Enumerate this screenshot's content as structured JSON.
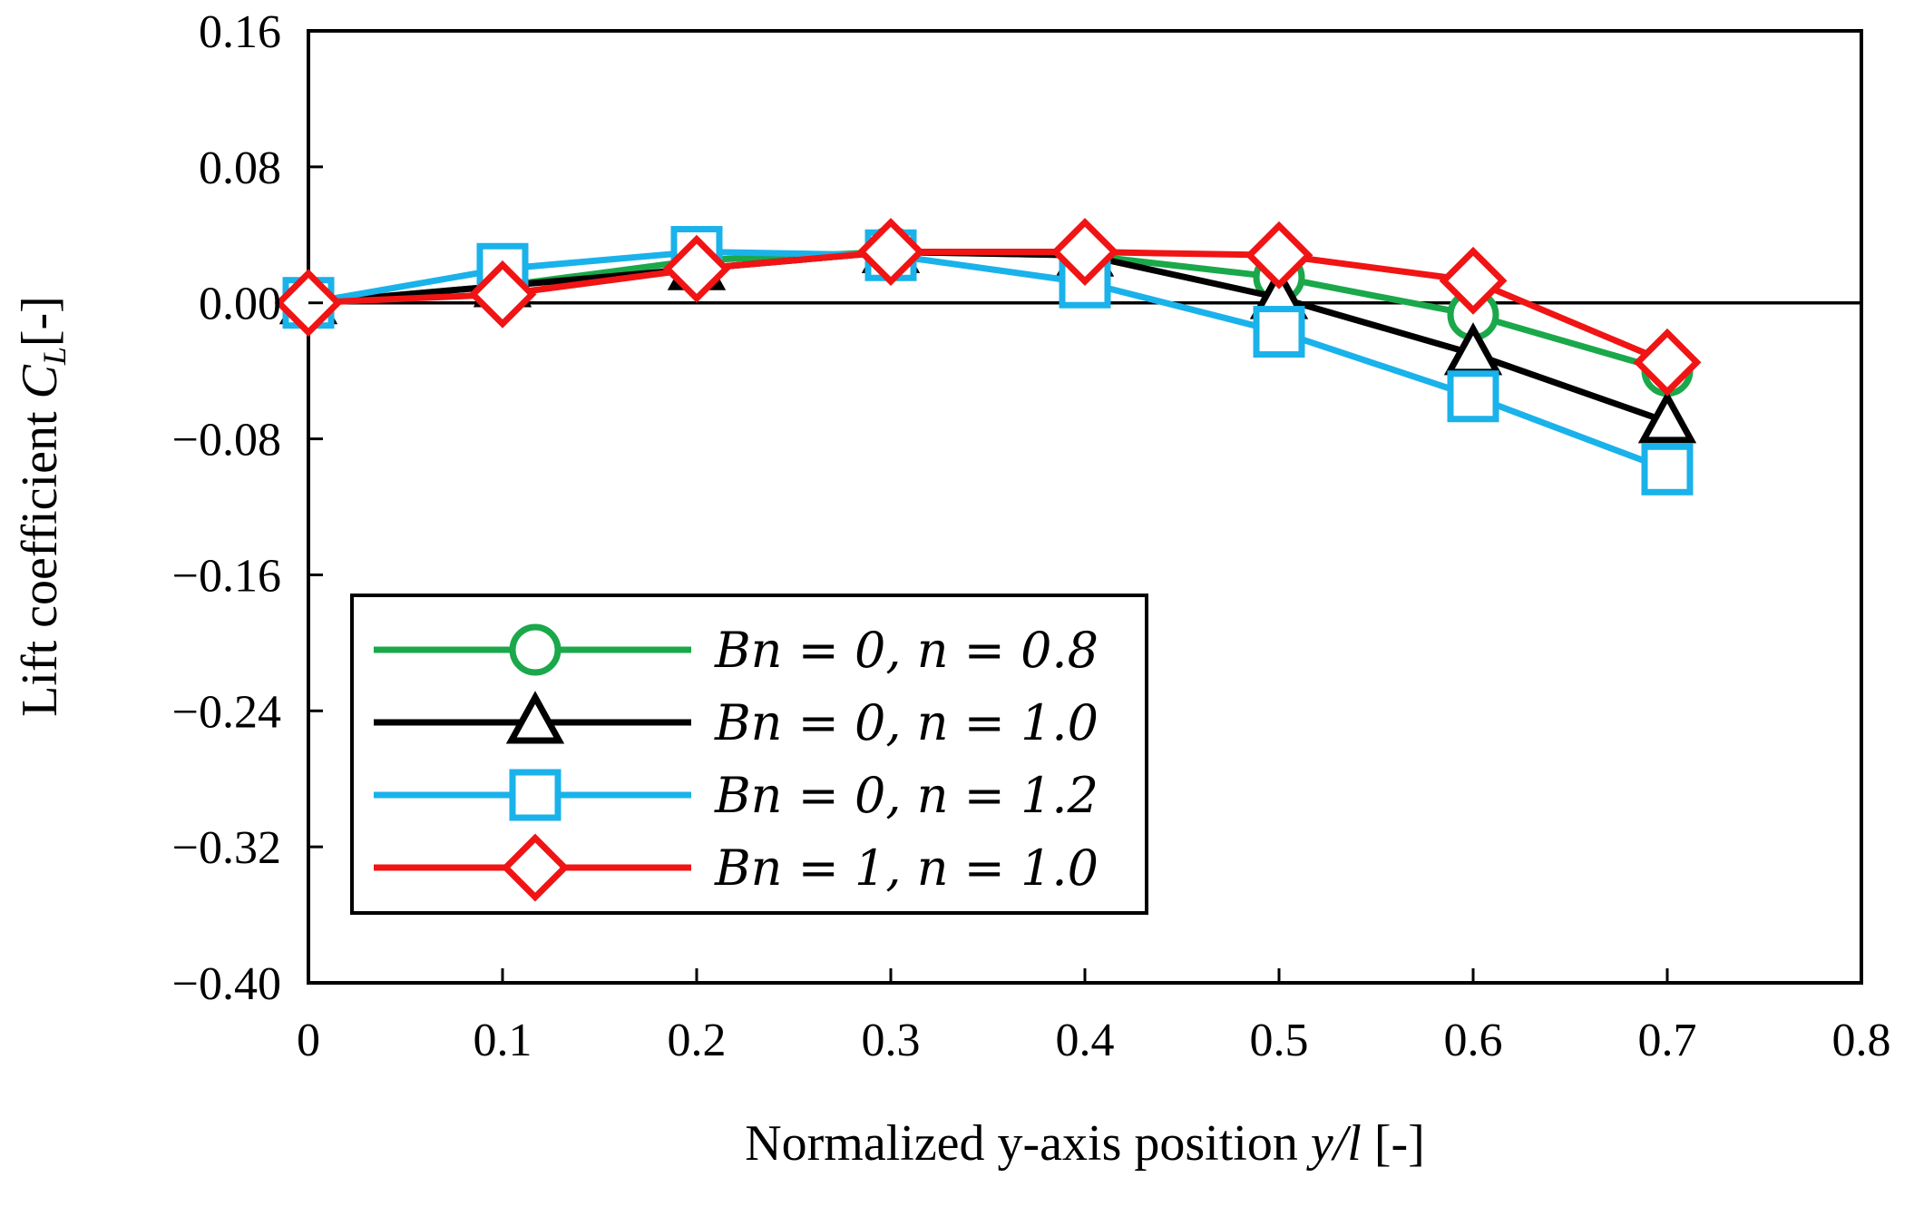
{
  "chart_data": {
    "type": "line",
    "title": "",
    "xlabel": "Normalized y-axis position y/l [-]",
    "xlabel_parts": {
      "prefix": "Normalized y-axis position ",
      "var": "y/l",
      "suffix": " [-]"
    },
    "ylabel": "Lift coefficient C_L [-]",
    "ylabel_parts": {
      "prefix": "Lift coefficient ",
      "var": "C",
      "sub": "L",
      "suffix": "[-]"
    },
    "xlim": [
      0,
      0.8
    ],
    "ylim": [
      -0.4,
      0.16
    ],
    "x_ticks": [
      0,
      0.1,
      0.2,
      0.3,
      0.4,
      0.5,
      0.6,
      0.7,
      0.8
    ],
    "x_tick_labels": [
      "0",
      "0.1",
      "0.2",
      "0.3",
      "0.4",
      "0.5",
      "0.6",
      "0.7",
      "0.8"
    ],
    "y_ticks": [
      0.16,
      0.08,
      0.0,
      -0.08,
      -0.16,
      -0.24,
      -0.32,
      -0.4
    ],
    "y_tick_labels": [
      "0.16",
      "0.08",
      "0.00",
      "−0.08",
      "−0.16",
      "−0.24",
      "−0.32",
      "−0.40"
    ],
    "zero_line": true,
    "grid": false,
    "legend_position": "bottom-left",
    "x": [
      0,
      0.1,
      0.2,
      0.3,
      0.4,
      0.5,
      0.6,
      0.7
    ],
    "series": [
      {
        "name": "Bn = 0, n = 0.8",
        "color": "#1aa84a",
        "marker": "circle",
        "values": [
          0.0,
          0.01,
          0.025,
          0.03,
          0.028,
          0.015,
          -0.007,
          -0.04
        ]
      },
      {
        "name": "Bn = 0, n = 1.0",
        "color": "#000000",
        "marker": "triangle",
        "values": [
          0.0,
          0.01,
          0.02,
          0.03,
          0.028,
          0.003,
          -0.03,
          -0.07
        ]
      },
      {
        "name": "Bn = 0, n = 1.2",
        "color": "#1ab2ea",
        "marker": "square",
        "values": [
          0.0,
          0.02,
          0.03,
          0.028,
          0.012,
          -0.017,
          -0.055,
          -0.098
        ]
      },
      {
        "name": "Bn = 1, n = 1.0",
        "color": "#f01414",
        "marker": "diamond",
        "values": [
          0.0,
          0.005,
          0.02,
          0.03,
          0.03,
          0.028,
          0.013,
          -0.035
        ]
      }
    ]
  }
}
